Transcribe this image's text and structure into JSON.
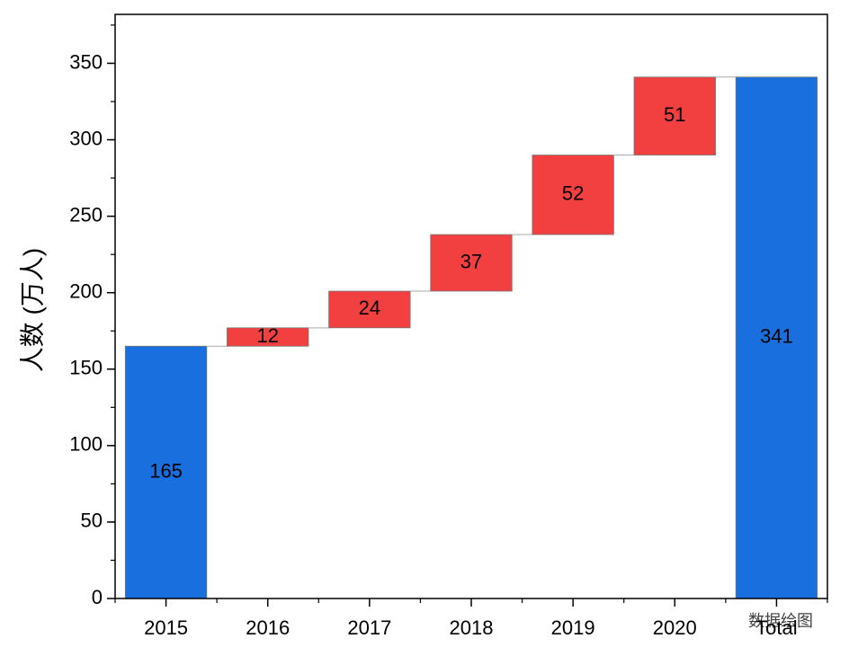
{
  "chart_data": {
    "type": "waterfall",
    "y_label": "人数 (万人)",
    "categories": [
      "2015",
      "2016",
      "2017",
      "2018",
      "2019",
      "2020",
      "Total"
    ],
    "values": [
      165,
      12,
      24,
      37,
      52,
      51,
      341
    ],
    "bar_kinds": [
      "absolute",
      "relative",
      "relative",
      "relative",
      "relative",
      "relative",
      "total"
    ],
    "colors": {
      "absolute": "#1a6fdf",
      "relative": "#f24040",
      "total": "#1a6fdf"
    },
    "ylim": [
      0,
      382
    ],
    "yticks": [
      0,
      50,
      100,
      150,
      200,
      250,
      300,
      350
    ],
    "yminor_step": 25,
    "watermark": "数据绘图"
  }
}
